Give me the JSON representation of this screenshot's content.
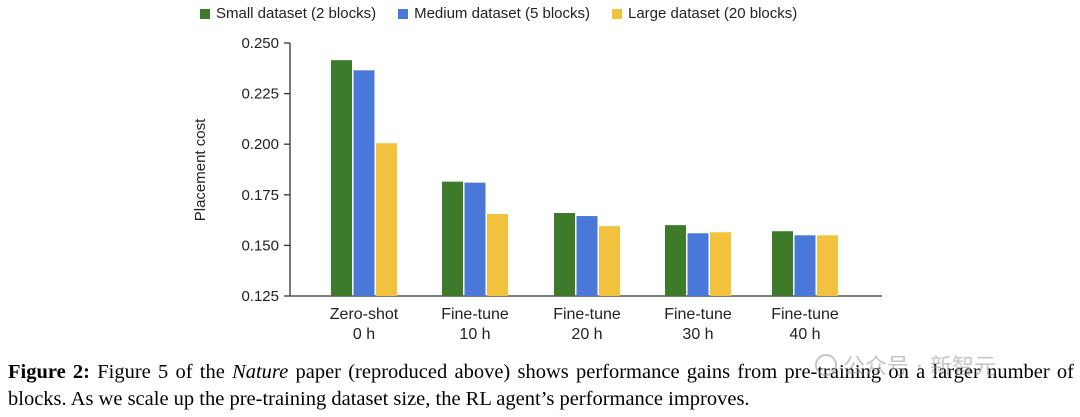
{
  "chart_data": {
    "type": "bar",
    "title": "",
    "xlabel": "",
    "ylabel": "Placement cost",
    "ylim": [
      0.125,
      0.25
    ],
    "yticks": [
      "0.250",
      "0.225",
      "0.200",
      "0.175",
      "0.150",
      "0.125"
    ],
    "categories": [
      [
        "Zero-shot",
        "0 h"
      ],
      [
        "Fine-tune",
        "10 h"
      ],
      [
        "Fine-tune",
        "20 h"
      ],
      [
        "Fine-tune",
        "30 h"
      ],
      [
        "Fine-tune",
        "40 h"
      ]
    ],
    "series": [
      {
        "name": "Small dataset (2 blocks)",
        "color": "#3d7a2a",
        "values": [
          0.2415,
          0.1815,
          0.166,
          0.16,
          0.157
        ]
      },
      {
        "name": "Medium dataset (5 blocks)",
        "color": "#4a78d8",
        "values": [
          0.2365,
          0.181,
          0.1645,
          0.156,
          0.155
        ]
      },
      {
        "name": "Large dataset (20 blocks)",
        "color": "#f2c23e",
        "values": [
          0.2005,
          0.1655,
          0.1595,
          0.1565,
          0.155
        ]
      }
    ],
    "legend_position": "top"
  },
  "caption": {
    "label": "Figure 2:",
    "part1": " Figure 5 of the ",
    "journal": "Nature",
    "part2": " paper (reproduced above) shows performance gains from pre-training on a larger number of blocks. As we scale up the pre-training dataset size, the RL agent’s performance improves."
  },
  "watermark": {
    "text": "公众号 · 新智元"
  }
}
